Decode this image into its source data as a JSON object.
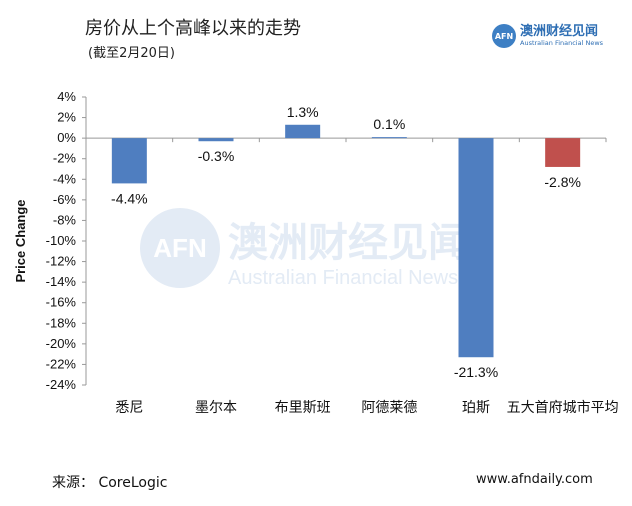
{
  "title": "房价从上个高峰以来的走势",
  "subtitle": "(截至2月20日)",
  "logo": {
    "badge": "AFN",
    "cn": "澳洲财经见闻",
    "en": "Australian Financial News"
  },
  "watermark": {
    "badge": "AFN",
    "cn": "澳洲财经见闻",
    "en": "Australian Financial News"
  },
  "footer": {
    "source": "来源：  CoreLogic",
    "url": "www.afndaily.com"
  },
  "colors": {
    "blue": "#4f7ec0",
    "red": "#c0504d",
    "axis": "#999999",
    "watermark": "#e3ebf5"
  },
  "chart_data": {
    "type": "bar",
    "ylabel": "Price Change",
    "ylim": [
      -24,
      4
    ],
    "yticks": [
      4,
      2,
      0,
      -2,
      -4,
      -6,
      -8,
      -10,
      -12,
      -14,
      -16,
      -18,
      -20,
      -22,
      -24
    ],
    "ytick_labels": [
      "4%",
      "2%",
      "0%",
      "-2%",
      "-4%",
      "-6%",
      "-8%",
      "-10%",
      "-12%",
      "-14%",
      "-16%",
      "-18%",
      "-20%",
      "-22%",
      "-24%"
    ],
    "categories": [
      "悉尼",
      "墨尔本",
      "布里斯班",
      "阿德莱德",
      "珀斯",
      "五大首府城市平均"
    ],
    "values": [
      -4.4,
      -0.3,
      1.3,
      0.1,
      -21.3,
      -2.8
    ],
    "data_labels": [
      "-4.4%",
      "-0.3%",
      "1.3%",
      "0.1%",
      "-21.3%",
      "-2.8%"
    ],
    "bar_colors": [
      "blue",
      "blue",
      "blue",
      "blue",
      "blue",
      "red"
    ],
    "grid": false
  }
}
